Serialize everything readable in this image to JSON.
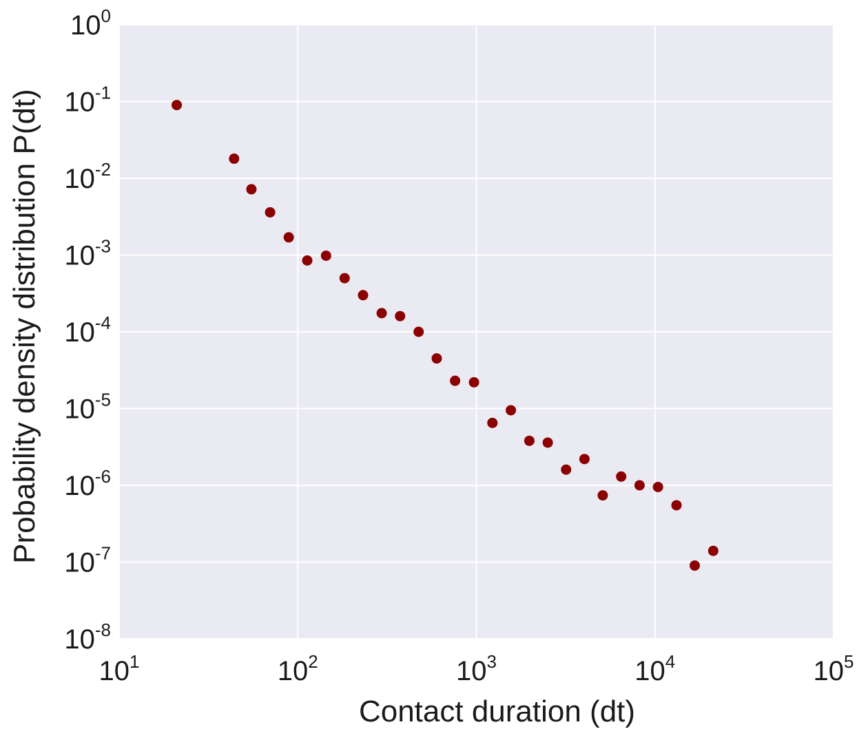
{
  "chart_data": {
    "type": "scatter",
    "xlabel": "Contact duration (dt)",
    "ylabel": "Probability density distribution P(dt)",
    "x_scale": "log",
    "y_scale": "log",
    "xlim": [
      10,
      100000
    ],
    "ylim": [
      1e-08,
      1
    ],
    "grid": true,
    "x_ticks": [
      {
        "base": "10",
        "exp": "1"
      },
      {
        "base": "10",
        "exp": "2"
      },
      {
        "base": "10",
        "exp": "3"
      },
      {
        "base": "10",
        "exp": "4"
      },
      {
        "base": "10",
        "exp": "5"
      }
    ],
    "y_ticks": [
      {
        "base": "10",
        "exp": "0"
      },
      {
        "base": "10",
        "exp": "-1"
      },
      {
        "base": "10",
        "exp": "-2"
      },
      {
        "base": "10",
        "exp": "-3"
      },
      {
        "base": "10",
        "exp": "-4"
      },
      {
        "base": "10",
        "exp": "-5"
      },
      {
        "base": "10",
        "exp": "-6"
      },
      {
        "base": "10",
        "exp": "-7"
      },
      {
        "base": "10",
        "exp": "-8"
      }
    ],
    "colors": {
      "marker": "#8b0000",
      "plot_background": "#eaeaf2",
      "grid": "#ffffff"
    },
    "points": [
      {
        "x": 21,
        "y": 0.09
      },
      {
        "x": 44,
        "y": 0.018
      },
      {
        "x": 55,
        "y": 0.0072
      },
      {
        "x": 70,
        "y": 0.0036
      },
      {
        "x": 89,
        "y": 0.0017
      },
      {
        "x": 113,
        "y": 0.00085
      },
      {
        "x": 144,
        "y": 0.00098
      },
      {
        "x": 183,
        "y": 0.0005
      },
      {
        "x": 232,
        "y": 0.0003
      },
      {
        "x": 295,
        "y": 0.000175
      },
      {
        "x": 374,
        "y": 0.00016
      },
      {
        "x": 475,
        "y": 0.0001
      },
      {
        "x": 600,
        "y": 4.5e-05
      },
      {
        "x": 760,
        "y": 2.3e-05
      },
      {
        "x": 970,
        "y": 2.2e-05
      },
      {
        "x": 1230,
        "y": 6.5e-06
      },
      {
        "x": 1560,
        "y": 9.5e-06
      },
      {
        "x": 1980,
        "y": 3.8e-06
      },
      {
        "x": 2510,
        "y": 3.6e-06
      },
      {
        "x": 3180,
        "y": 1.6e-06
      },
      {
        "x": 4030,
        "y": 2.2e-06
      },
      {
        "x": 5100,
        "y": 7.4e-07
      },
      {
        "x": 6470,
        "y": 1.3e-06
      },
      {
        "x": 8200,
        "y": 1e-06
      },
      {
        "x": 10400,
        "y": 9.5e-07
      },
      {
        "x": 13200,
        "y": 5.5e-07
      },
      {
        "x": 16700,
        "y": 9e-08
      },
      {
        "x": 21200,
        "y": 1.4e-07
      }
    ]
  }
}
